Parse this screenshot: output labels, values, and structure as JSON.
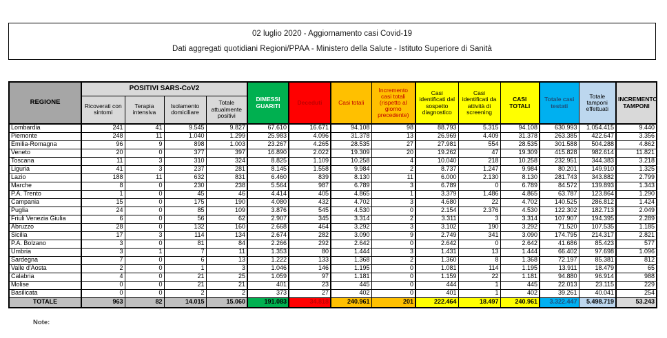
{
  "header": {
    "line1": "02 luglio 2020 - Aggiornamento casi Covid-19",
    "line2": "Dati aggregati quotidiani Regioni/PPAA - Ministero della Salute - Istituto Superiore di Sanità"
  },
  "table": {
    "corner_header": "REGIONE",
    "group_header": "POSITIVI SARS-CoV2",
    "sub_headers": [
      "Ricoverati con sintomi",
      "Terapia intensiva",
      "Isolamento domiciliare",
      "Totale attualmente positivi"
    ],
    "column_headers": {
      "dimessi": "DIMESSI GUARITI",
      "deceduti": "Deceduti",
      "casi_totali": "Casi totali",
      "incremento_casi": "Incremento casi totali (rispetto al giorno precedente)",
      "sospetto": "Casi identificati dal sospetto diagnostico",
      "screening": "Casi identificati da attività di screening",
      "casi_totali_caps": "CASI TOTALI",
      "testati": "Totale casi testati",
      "tamponi": "Totale tamponi effettuati",
      "incremento_tamponi": "INCREMENTO TAMPONI"
    },
    "rows": [
      {
        "name": "Lombardia",
        "values": [
          "241",
          "41",
          "9.545",
          "9.827",
          "67.610",
          "16.671",
          "94.108",
          "98",
          "88.793",
          "5.315",
          "94.108",
          "630.993",
          "1.054.415",
          "9.440"
        ]
      },
      {
        "name": "Piemonte",
        "values": [
          "248",
          "11",
          "1.040",
          "1.299",
          "25.983",
          "4.096",
          "31.378",
          "13",
          "26.969",
          "4.409",
          "31.378",
          "263.385",
          "422.647",
          "3.356"
        ]
      },
      {
        "name": "Emilia-Romagna",
        "values": [
          "96",
          "9",
          "898",
          "1.003",
          "23.267",
          "4.265",
          "28.535",
          "27",
          "27.981",
          "554",
          "28.535",
          "301.588",
          "504.288",
          "4.862"
        ]
      },
      {
        "name": "Veneto",
        "values": [
          "20",
          "0",
          "377",
          "397",
          "16.890",
          "2.022",
          "19.309",
          "20",
          "19.262",
          "47",
          "19.309",
          "415.828",
          "982.614",
          "11.821"
        ]
      },
      {
        "name": "Toscana",
        "values": [
          "11",
          "3",
          "310",
          "324",
          "8.825",
          "1.109",
          "10.258",
          "4",
          "10.040",
          "218",
          "10.258",
          "232.951",
          "344.383",
          "3.218"
        ]
      },
      {
        "name": "Liguria",
        "values": [
          "41",
          "3",
          "237",
          "281",
          "8.145",
          "1.558",
          "9.984",
          "2",
          "8.737",
          "1.247",
          "9.984",
          "80.201",
          "149.910",
          "1.325"
        ]
      },
      {
        "name": "Lazio",
        "values": [
          "188",
          "11",
          "632",
          "831",
          "6.460",
          "839",
          "8.130",
          "11",
          "6.000",
          "2.130",
          "8.130",
          "281.743",
          "343.882",
          "2.799"
        ]
      },
      {
        "name": "Marche",
        "values": [
          "8",
          "0",
          "230",
          "238",
          "5.564",
          "987",
          "6.789",
          "3",
          "6.789",
          "0",
          "6.789",
          "84.572",
          "139.893",
          "1.343"
        ]
      },
      {
        "name": "P.A. Trento",
        "values": [
          "1",
          "0",
          "45",
          "46",
          "4.414",
          "405",
          "4.865",
          "1",
          "3.379",
          "1.486",
          "4.865",
          "63.787",
          "123.864",
          "1.290"
        ]
      },
      {
        "name": "Campania",
        "values": [
          "15",
          "0",
          "175",
          "190",
          "4.080",
          "432",
          "4.702",
          "3",
          "4.680",
          "22",
          "4.702",
          "140.525",
          "286.812",
          "1.424"
        ]
      },
      {
        "name": "Puglia",
        "values": [
          "24",
          "0",
          "85",
          "109",
          "3.876",
          "545",
          "4.530",
          "0",
          "2.154",
          "2.376",
          "4.530",
          "122.302",
          "182.713",
          "2.049"
        ]
      },
      {
        "name": "Friuli Venezia Giulia",
        "values": [
          "6",
          "0",
          "56",
          "62",
          "2.907",
          "345",
          "3.314",
          "2",
          "3.311",
          "3",
          "3.314",
          "107.907",
          "194.395",
          "2.289"
        ]
      },
      {
        "name": "Abruzzo",
        "values": [
          "28",
          "0",
          "132",
          "160",
          "2.668",
          "464",
          "3.292",
          "3",
          "3.102",
          "190",
          "3.292",
          "71.520",
          "107.535",
          "1.185"
        ]
      },
      {
        "name": "Sicilia",
        "values": [
          "17",
          "3",
          "114",
          "134",
          "2.674",
          "282",
          "3.090",
          "9",
          "2.749",
          "341",
          "3.090",
          "174.795",
          "214.317",
          "2.821"
        ]
      },
      {
        "name": "P.A. Bolzano",
        "values": [
          "3",
          "0",
          "81",
          "84",
          "2.266",
          "292",
          "2.642",
          "0",
          "2.642",
          "0",
          "2.642",
          "41.686",
          "85.423",
          "577"
        ]
      },
      {
        "name": "Umbria",
        "values": [
          "3",
          "1",
          "7",
          "11",
          "1.353",
          "80",
          "1.444",
          "3",
          "1.431",
          "13",
          "1.444",
          "66.402",
          "97.698",
          "1.096"
        ]
      },
      {
        "name": "Sardegna",
        "values": [
          "7",
          "0",
          "6",
          "13",
          "1.222",
          "133",
          "1.368",
          "2",
          "1.360",
          "8",
          "1.368",
          "72.197",
          "85.381",
          "812"
        ]
      },
      {
        "name": "Valle d'Aosta",
        "values": [
          "2",
          "0",
          "1",
          "3",
          "1.046",
          "146",
          "1.195",
          "0",
          "1.081",
          "114",
          "1.195",
          "13.911",
          "18.479",
          "65"
        ]
      },
      {
        "name": "Calabria",
        "values": [
          "4",
          "0",
          "21",
          "25",
          "1.059",
          "97",
          "1.181",
          "0",
          "1.159",
          "22",
          "1.181",
          "94.880",
          "96.914",
          "988"
        ]
      },
      {
        "name": "Molise",
        "values": [
          "0",
          "0",
          "21",
          "21",
          "401",
          "23",
          "445",
          "0",
          "444",
          "1",
          "445",
          "22.013",
          "23.115",
          "229"
        ]
      },
      {
        "name": "Basilicata",
        "values": [
          "0",
          "0",
          "2",
          "2",
          "373",
          "27",
          "402",
          "0",
          "401",
          "1",
          "402",
          "39.261",
          "40.041",
          "254"
        ]
      }
    ],
    "total_row": {
      "name": "TOTALE",
      "values": [
        "963",
        "82",
        "14.015",
        "15.060",
        "191.083",
        "34.818",
        "240.961",
        "201",
        "222.464",
        "18.497",
        "240.961",
        "3.322.447",
        "5.498.719",
        "53.243"
      ]
    }
  },
  "footer": {
    "note": "Note:"
  },
  "colors": {
    "green": "#00B050",
    "red": "#FF0000",
    "dark_red": "#C00000",
    "orange": "#FFC000",
    "yellow": "#FFFF00",
    "cyan": "#00B0F0",
    "dark_blue": "#1F4E79",
    "light_blue": "#BDD7EE",
    "light_gray": "#D9D9D9",
    "mid_gray": "#BFBFBF",
    "dark_gray": "#A6A6A6"
  }
}
